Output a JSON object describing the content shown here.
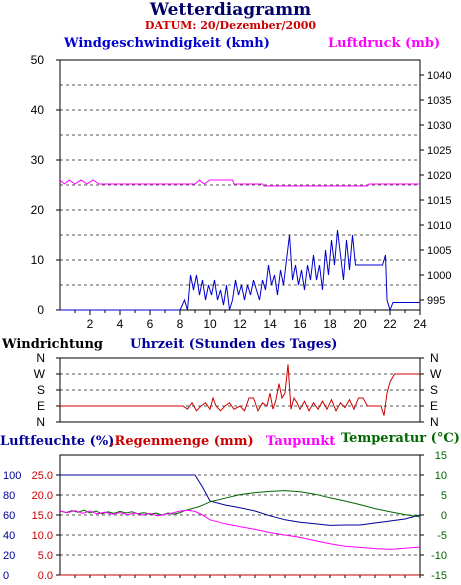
{
  "title": "Wetterdiagramm",
  "subtitle": "DATUM: 20/Dezember/2000",
  "colors": {
    "wind": "#0000cc",
    "pressure": "#ff00ff",
    "direction": "#cc0000",
    "humidity": "#000099",
    "rain": "#cc0000",
    "dewpoint": "#ff00ff",
    "temperature": "#006600",
    "title": "#000066",
    "grid": "#555555"
  },
  "panel1": {
    "left_label": "Windgeschwindigkeit (kmh)",
    "right_label": "Luftdruck (mb)",
    "x_label": "Uhrzeit (Stunden des Tages)"
  },
  "panel2": {
    "label": "Windrichtung"
  },
  "panel3": {
    "label_humidity": "Luftfeuchte (%)",
    "label_rain": "Regenmenge (mm)",
    "label_dewpoint": "Taupunkt",
    "label_temperature_prefix": "Temperatur (",
    "label_temperature_unit": "°C",
    "label_temperature_suffix": ")"
  },
  "chart_data": [
    {
      "type": "line",
      "xlim": [
        0,
        24
      ],
      "x_ticks": [
        2,
        4,
        6,
        8,
        10,
        12,
        14,
        16,
        18,
        20,
        22,
        24
      ],
      "ylim_left": [
        0,
        50
      ],
      "y_ticks_left": [
        0,
        10,
        20,
        30,
        40,
        50
      ],
      "ylim_right": [
        993,
        1043
      ],
      "y_ticks_right": [
        995,
        1000,
        1005,
        1010,
        1015,
        1020,
        1025,
        1030,
        1035,
        1040
      ],
      "grid": true,
      "series": [
        {
          "axis": "left",
          "points": [
            [
              0,
              0
            ],
            [
              8,
              0
            ],
            [
              8.3,
              2
            ],
            [
              8.5,
              0
            ],
            [
              8.7,
              7
            ],
            [
              8.9,
              4
            ],
            [
              9.1,
              7
            ],
            [
              9.3,
              3
            ],
            [
              9.5,
              6
            ],
            [
              9.7,
              2
            ],
            [
              9.9,
              5
            ],
            [
              10.1,
              3
            ],
            [
              10.3,
              6
            ],
            [
              10.5,
              2
            ],
            [
              10.7,
              4
            ],
            [
              10.9,
              1
            ],
            [
              11.1,
              5
            ],
            [
              11.3,
              0
            ],
            [
              11.5,
              2
            ],
            [
              11.7,
              6
            ],
            [
              11.9,
              3
            ],
            [
              12.1,
              5
            ],
            [
              12.3,
              2
            ],
            [
              12.5,
              5
            ],
            [
              12.7,
              3
            ],
            [
              12.9,
              6
            ],
            [
              13.1,
              4
            ],
            [
              13.3,
              2
            ],
            [
              13.5,
              6
            ],
            [
              13.7,
              4
            ],
            [
              13.9,
              9
            ],
            [
              14.1,
              5
            ],
            [
              14.3,
              7
            ],
            [
              14.5,
              3
            ],
            [
              14.7,
              8
            ],
            [
              14.9,
              5
            ],
            [
              15.1,
              10
            ],
            [
              15.3,
              15
            ],
            [
              15.5,
              6
            ],
            [
              15.7,
              9
            ],
            [
              15.9,
              5
            ],
            [
              16.1,
              8
            ],
            [
              16.3,
              4
            ],
            [
              16.5,
              9
            ],
            [
              16.7,
              6
            ],
            [
              16.9,
              11
            ],
            [
              17.1,
              6
            ],
            [
              17.3,
              9
            ],
            [
              17.5,
              4
            ],
            [
              17.7,
              12
            ],
            [
              17.9,
              7
            ],
            [
              18.1,
              14
            ],
            [
              18.3,
              9
            ],
            [
              18.5,
              16
            ],
            [
              18.7,
              11
            ],
            [
              18.9,
              6
            ],
            [
              19.1,
              14
            ],
            [
              19.3,
              8
            ],
            [
              19.5,
              15
            ],
            [
              19.7,
              9
            ],
            [
              20,
              9
            ],
            [
              21.5,
              9
            ],
            [
              21.7,
              11
            ],
            [
              21.8,
              2
            ],
            [
              22,
              0
            ],
            [
              22.2,
              1.5
            ],
            [
              24,
              1.5
            ]
          ]
        },
        {
          "axis": "right",
          "points": [
            [
              0,
              1019
            ],
            [
              0.3,
              1018.2
            ],
            [
              0.6,
              1019
            ],
            [
              1,
              1018.2
            ],
            [
              1.4,
              1019
            ],
            [
              1.8,
              1018.2
            ],
            [
              2.2,
              1019
            ],
            [
              2.6,
              1018.2
            ],
            [
              3,
              1018.2
            ],
            [
              9,
              1018.2
            ],
            [
              9.3,
              1019
            ],
            [
              9.6,
              1018.2
            ],
            [
              10,
              1019
            ],
            [
              11.5,
              1019
            ],
            [
              11.6,
              1018.2
            ],
            [
              13.5,
              1018.2
            ],
            [
              13.6,
              1017.8
            ],
            [
              20.5,
              1017.8
            ],
            [
              20.6,
              1018.2
            ],
            [
              24,
              1018.2
            ]
          ]
        }
      ]
    },
    {
      "type": "line",
      "xlim": [
        0,
        24
      ],
      "categories": [
        "N",
        "W",
        "S",
        "E",
        "N"
      ],
      "points": [
        [
          0,
          3
        ],
        [
          8.2,
          3
        ],
        [
          8.5,
          3.2
        ],
        [
          8.8,
          2.8
        ],
        [
          9.1,
          3.3
        ],
        [
          9.4,
          3
        ],
        [
          9.7,
          2.8
        ],
        [
          10,
          3.2
        ],
        [
          10.2,
          2.5
        ],
        [
          10.4,
          3
        ],
        [
          10.7,
          3.3
        ],
        [
          11,
          3
        ],
        [
          11.3,
          2.8
        ],
        [
          11.6,
          3.2
        ],
        [
          12,
          3
        ],
        [
          12.3,
          3.3
        ],
        [
          12.6,
          2.5
        ],
        [
          12.9,
          2.5
        ],
        [
          13.2,
          3.3
        ],
        [
          13.5,
          2.8
        ],
        [
          13.8,
          3
        ],
        [
          14,
          2.2
        ],
        [
          14.2,
          3.2
        ],
        [
          14.4,
          2.6
        ],
        [
          14.6,
          1.6
        ],
        [
          14.8,
          2.5
        ],
        [
          15,
          2.2
        ],
        [
          15.2,
          0.4
        ],
        [
          15.4,
          3.2
        ],
        [
          15.6,
          2.5
        ],
        [
          15.8,
          2.8
        ],
        [
          16,
          3.2
        ],
        [
          16.3,
          2.7
        ],
        [
          16.6,
          3.3
        ],
        [
          16.9,
          2.8
        ],
        [
          17.2,
          3.2
        ],
        [
          17.5,
          2.7
        ],
        [
          17.8,
          3.2
        ],
        [
          18.1,
          2.6
        ],
        [
          18.4,
          3.3
        ],
        [
          18.7,
          2.8
        ],
        [
          19,
          3.1
        ],
        [
          19.3,
          2.6
        ],
        [
          19.6,
          3.2
        ],
        [
          19.9,
          2.5
        ],
        [
          20.2,
          2.5
        ],
        [
          20.5,
          3
        ],
        [
          21.4,
          3
        ],
        [
          21.6,
          3.6
        ],
        [
          21.8,
          2.2
        ],
        [
          22,
          1.5
        ],
        [
          22.3,
          1
        ],
        [
          24,
          1
        ]
      ]
    },
    {
      "type": "line",
      "xlim": [
        0,
        24
      ],
      "y_ticks_humidity": [
        0,
        20,
        40,
        60,
        80,
        100
      ],
      "y_ticks_rain": [
        0.0,
        5.0,
        10.0,
        15.0,
        20.0,
        25.0
      ],
      "ylim_rain": [
        0,
        30
      ],
      "ylim_temperature": [
        -15,
        15
      ],
      "y_ticks_temperature": [
        -15,
        -10,
        -5,
        0,
        5,
        10,
        15
      ],
      "grid": true,
      "series": [
        {
          "axis": "rain",
          "points": [
            [
              0,
              25
            ],
            [
              9,
              25
            ],
            [
              9.5,
              22
            ],
            [
              10,
              18.5
            ],
            [
              11,
              17.5
            ],
            [
              12,
              16.8
            ],
            [
              13,
              16
            ],
            [
              14,
              14.8
            ],
            [
              15,
              13.8
            ],
            [
              16,
              13.2
            ],
            [
              17,
              12.8
            ],
            [
              18,
              12.4
            ],
            [
              19,
              12.5
            ],
            [
              20,
              12.5
            ],
            [
              21,
              13
            ],
            [
              22,
              13.5
            ],
            [
              23,
              14
            ],
            [
              24,
              15
            ]
          ]
        },
        {
          "axis": "temperature",
          "points": [
            [
              0,
              1
            ],
            [
              0.4,
              0.6
            ],
            [
              0.8,
              1.1
            ],
            [
              1.2,
              0.7
            ],
            [
              1.6,
              1.2
            ],
            [
              2,
              0.5
            ],
            [
              2.4,
              1
            ],
            [
              2.8,
              0.3
            ],
            [
              3.2,
              0.8
            ],
            [
              3.6,
              0.4
            ],
            [
              4,
              0.9
            ],
            [
              4.4,
              0.5
            ],
            [
              4.8,
              0.8
            ],
            [
              5.2,
              0.3
            ],
            [
              5.6,
              0.6
            ],
            [
              6,
              0.2
            ],
            [
              6.4,
              0.5
            ],
            [
              6.8,
              0
            ],
            [
              7.2,
              0.5
            ],
            [
              7.6,
              0.2
            ],
            [
              8,
              0.6
            ],
            [
              8.4,
              1.2
            ],
            [
              8.8,
              1.6
            ],
            [
              9.2,
              2
            ],
            [
              9.6,
              2.6
            ],
            [
              10,
              3.3
            ],
            [
              11,
              4.2
            ],
            [
              12,
              5.1
            ],
            [
              13,
              5.6
            ],
            [
              14,
              5.9
            ],
            [
              15,
              6.1
            ],
            [
              16,
              5.8
            ],
            [
              17,
              5.2
            ],
            [
              18,
              4.3
            ],
            [
              19,
              3.5
            ],
            [
              20,
              2.6
            ],
            [
              21,
              1.6
            ],
            [
              22,
              0.8
            ],
            [
              23,
              0.1
            ],
            [
              24,
              -0.5
            ]
          ]
        },
        {
          "axis": "temperature",
          "points": [
            [
              0,
              1
            ],
            [
              0.5,
              0.6
            ],
            [
              1,
              1.1
            ],
            [
              1.5,
              0.4
            ],
            [
              2,
              1
            ],
            [
              2.5,
              0.3
            ],
            [
              3,
              0.7
            ],
            [
              3.5,
              0.2
            ],
            [
              4,
              0.6
            ],
            [
              4.5,
              0.1
            ],
            [
              5,
              0.5
            ],
            [
              5.5,
              0
            ],
            [
              6,
              0.4
            ],
            [
              6.5,
              -0.2
            ],
            [
              7,
              0.2
            ],
            [
              7.5,
              0.5
            ],
            [
              8,
              1
            ],
            [
              8.5,
              1.2
            ],
            [
              9,
              0.9
            ],
            [
              9.5,
              0
            ],
            [
              10,
              -1.2
            ],
            [
              11,
              -2.2
            ],
            [
              12,
              -2.9
            ],
            [
              13,
              -3.6
            ],
            [
              14,
              -4.4
            ],
            [
              15,
              -5
            ],
            [
              16,
              -5.6
            ],
            [
              17,
              -6.4
            ],
            [
              18,
              -7.2
            ],
            [
              19,
              -7.8
            ],
            [
              20,
              -8.1
            ],
            [
              21,
              -8.4
            ],
            [
              22,
              -8.6
            ],
            [
              23,
              -8.3
            ],
            [
              24,
              -8
            ]
          ]
        },
        {
          "axis": "rain",
          "points": [
            [
              0,
              0
            ],
            [
              24,
              0
            ]
          ]
        }
      ]
    }
  ]
}
